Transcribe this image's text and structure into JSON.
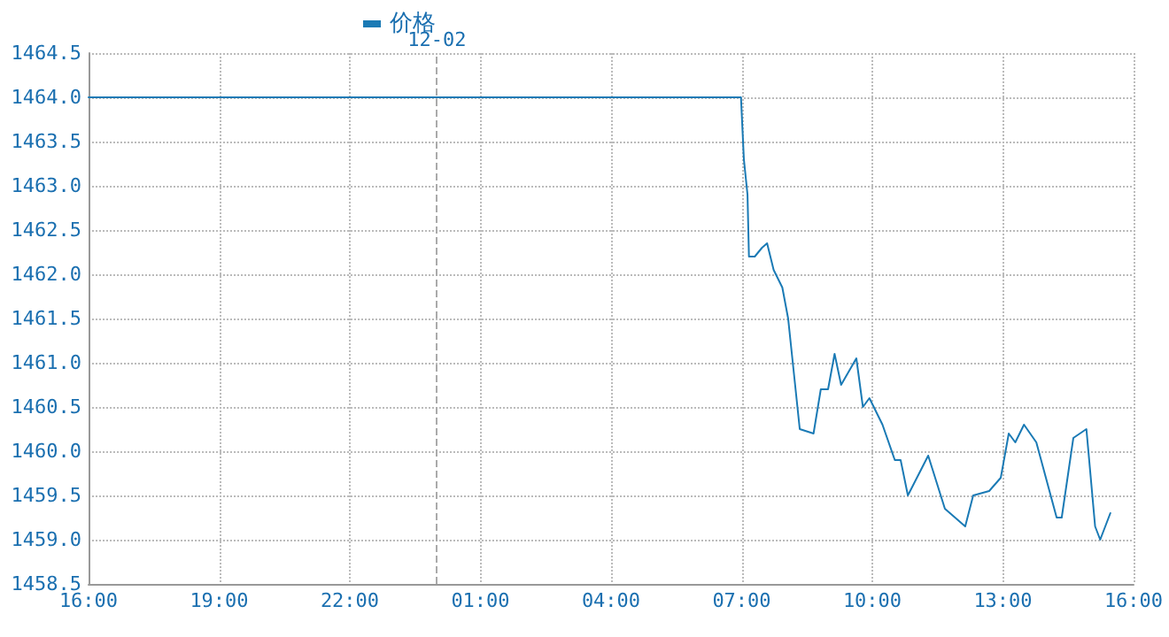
{
  "chart_data": {
    "type": "line",
    "legend": "top",
    "grid": true,
    "marker": "none",
    "line_style": "solid",
    "x": [
      "--12-01T16:00",
      "--12-02T06:54",
      "--12-02T06:59",
      "--12-02T07:03",
      "--12-02T07:08",
      "--12-02T07:10",
      "--12-02T07:18",
      "--12-02T07:28",
      "--12-02T07:35",
      "--12-02T07:44",
      "--12-02T07:56",
      "--12-02T08:04",
      "--12-02T08:20",
      "--12-02T08:39",
      "--12-02T08:49",
      "--12-02T08:59",
      "--12-02T09:08",
      "--12-02T09:17",
      "--12-02T09:38",
      "--12-02T09:47",
      "--12-02T09:56",
      "--12-02T10:14",
      "--12-02T10:31",
      "--12-02T10:39",
      "--12-02T10:49",
      "--12-02T11:17",
      "--12-02T11:40",
      "--12-02T12:08",
      "--12-02T12:19",
      "--12-02T12:41",
      "--12-02T12:57",
      "--12-02T13:08",
      "--12-02T13:17",
      "--12-02T13:29",
      "--12-02T13:46",
      "--12-02T14:14",
      "--12-02T14:21",
      "--12-02T14:37",
      "--12-02T14:55",
      "--12-02T15:07",
      "--12-02T15:14",
      "--12-02T15:28"
    ],
    "series": [
      {
        "name": "价格",
        "color": "#1a7ab5",
        "values": [
          1464.0,
          1464.0,
          1464.0,
          1463.3,
          1462.9,
          1462.2,
          1462.2,
          1462.3,
          1462.35,
          1462.05,
          1461.85,
          1461.5,
          1460.25,
          1460.2,
          1460.7,
          1460.7,
          1461.1,
          1460.75,
          1461.05,
          1460.5,
          1460.6,
          1460.3,
          1459.9,
          1459.9,
          1459.5,
          1459.95,
          1459.35,
          1459.15,
          1459.5,
          1459.55,
          1459.7,
          1460.2,
          1460.1,
          1460.3,
          1460.1,
          1459.25,
          1459.25,
          1460.15,
          1460.25,
          1459.15,
          1459.0,
          1459.3
        ]
      }
    ],
    "xlim": [
      "--12-01T16:00",
      "--12-02T16:00"
    ],
    "xticks": [
      {
        "value": "--12-01T16:00",
        "label": "16:00"
      },
      {
        "value": "--12-01T19:00",
        "label": "19:00"
      },
      {
        "value": "--12-01T22:00",
        "label": "22:00"
      },
      {
        "value": "--12-02T01:00",
        "label": "01:00"
      },
      {
        "value": "--12-02T04:00",
        "label": "04:00"
      },
      {
        "value": "--12-02T07:00",
        "label": "07:00"
      },
      {
        "value": "--12-02T10:00",
        "label": "10:00"
      },
      {
        "value": "--12-02T13:00",
        "label": "13:00"
      },
      {
        "value": "--12-02T16:00",
        "label": "16:00"
      }
    ],
    "ylim": [
      1458.5,
      1464.5
    ],
    "yticks": [
      {
        "value": 1458.5,
        "label": "1458.5"
      },
      {
        "value": 1459,
        "label": "1459.0"
      },
      {
        "value": 1459.5,
        "label": "1459.5"
      },
      {
        "value": 1460,
        "label": "1460.0"
      },
      {
        "value": 1460.5,
        "label": "1460.5"
      },
      {
        "value": 1461,
        "label": "1461.0"
      },
      {
        "value": 1461.5,
        "label": "1461.5"
      },
      {
        "value": 1462,
        "label": "1462.0"
      },
      {
        "value": 1462.5,
        "label": "1462.5"
      },
      {
        "value": 1463,
        "label": "1463.0"
      },
      {
        "value": 1463.5,
        "label": "1463.5"
      },
      {
        "value": 1464,
        "label": "1464.0"
      },
      {
        "value": 1464.5,
        "label": "1464.5"
      }
    ],
    "ref_lines": [
      {
        "axis": "x",
        "value": "--12-02",
        "label": "12-02",
        "line_style": "dashed",
        "color": "#aaaaaa"
      }
    ]
  }
}
